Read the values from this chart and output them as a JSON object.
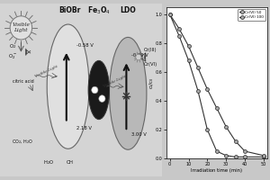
{
  "fig_bg": "#c8c8c8",
  "diagram_bg": "#c8c8c8",
  "graph_bg": "#f0f0f0",
  "graph": {
    "series": [
      {
        "label": "Cr(VI) 50",
        "x": [
          0,
          5,
          10,
          15,
          20,
          25,
          30,
          35,
          40,
          50
        ],
        "y": [
          1.0,
          0.85,
          0.68,
          0.47,
          0.2,
          0.05,
          0.02,
          0.01,
          0.01,
          0.01
        ],
        "color": "#333333",
        "marker": "o"
      },
      {
        "label": "Cr(VI) 100",
        "x": [
          0,
          5,
          10,
          15,
          20,
          25,
          30,
          35,
          40,
          50
        ],
        "y": [
          1.0,
          0.9,
          0.78,
          0.63,
          0.48,
          0.35,
          0.22,
          0.12,
          0.05,
          0.02
        ],
        "color": "#555555",
        "marker": "o"
      }
    ],
    "xlabel": "Irradiation time (min)",
    "ylabel": "c₁/c₀",
    "xlim": [
      -2,
      52
    ],
    "ylim": [
      0.0,
      1.05
    ],
    "yticks": [
      0.0,
      0.2,
      0.4,
      0.6,
      0.8,
      1.0
    ],
    "xticks": [
      0,
      10,
      20,
      30,
      40,
      50
    ]
  }
}
